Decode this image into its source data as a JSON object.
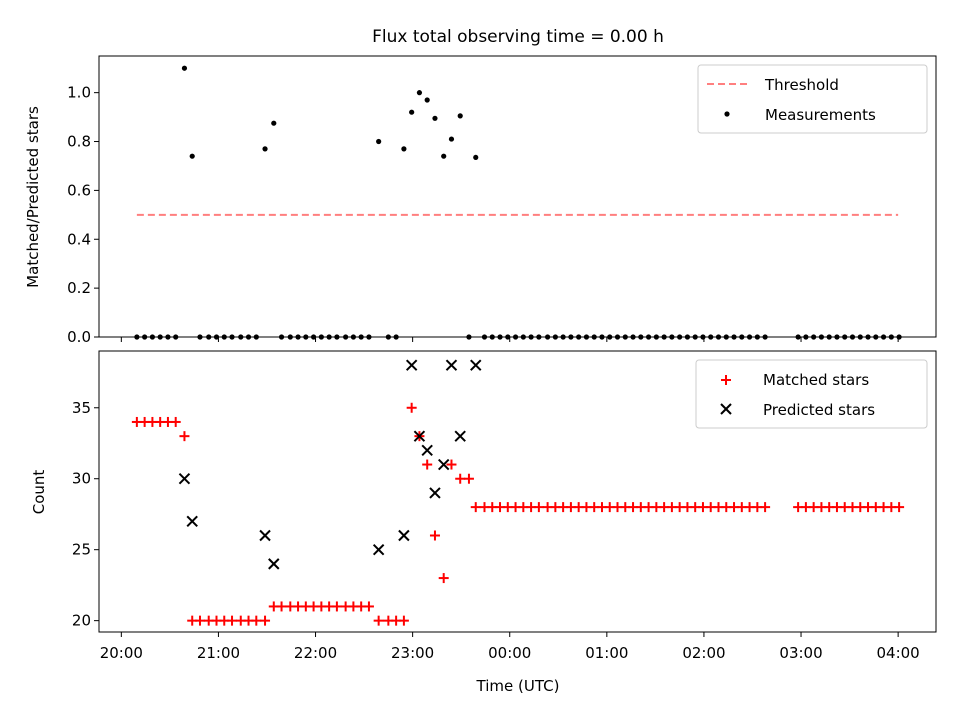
{
  "title": "Flux total observing time = 0.00 h",
  "chart_data": [
    {
      "type": "scatter",
      "ylabel": "Matched/Predicted stars",
      "ylim": [
        0,
        1.15
      ],
      "yticks": [
        "0.0",
        "0.2",
        "0.4",
        "0.6",
        "0.8",
        "1.0"
      ],
      "xlim_hours": [
        19.77,
        28.39
      ],
      "legend": {
        "position": "top-right",
        "items": [
          "Threshold",
          "Measurements"
        ]
      },
      "threshold": {
        "name": "Threshold",
        "y": 0.5,
        "x": [
          20.16,
          28.0
        ],
        "color": "#ff7f7f"
      },
      "measurements": {
        "name": "Measurements",
        "color": "#000000",
        "points": [
          [
            20.16,
            0
          ],
          [
            20.24,
            0
          ],
          [
            20.32,
            0
          ],
          [
            20.4,
            0
          ],
          [
            20.48,
            0
          ],
          [
            20.56,
            0
          ],
          [
            20.65,
            1.1
          ],
          [
            20.73,
            0.74
          ],
          [
            20.81,
            0
          ],
          [
            20.9,
            0
          ],
          [
            20.98,
            0
          ],
          [
            21.06,
            0
          ],
          [
            21.14,
            0
          ],
          [
            21.23,
            0
          ],
          [
            21.31,
            0
          ],
          [
            21.39,
            0
          ],
          [
            21.48,
            0.77
          ],
          [
            21.57,
            0.875
          ],
          [
            21.65,
            0
          ],
          [
            21.74,
            0
          ],
          [
            21.82,
            0
          ],
          [
            21.9,
            0
          ],
          [
            21.98,
            0
          ],
          [
            22.06,
            0
          ],
          [
            22.14,
            0
          ],
          [
            22.22,
            0
          ],
          [
            22.31,
            0
          ],
          [
            22.39,
            0
          ],
          [
            22.47,
            0
          ],
          [
            22.55,
            0
          ],
          [
            22.65,
            0.8
          ],
          [
            22.75,
            0
          ],
          [
            22.83,
            0
          ],
          [
            22.91,
            0.77
          ],
          [
            22.99,
            0.92
          ],
          [
            23.07,
            1.0
          ],
          [
            23.15,
            0.97
          ],
          [
            23.23,
            0.895
          ],
          [
            23.32,
            0.74
          ],
          [
            23.4,
            0.81
          ],
          [
            23.49,
            0.905
          ],
          [
            23.58,
            0
          ],
          [
            23.65,
            0.735
          ],
          [
            23.74,
            0
          ],
          [
            23.82,
            0
          ],
          [
            23.9,
            0
          ],
          [
            23.98,
            0
          ],
          [
            24.06,
            0
          ],
          [
            24.14,
            0
          ],
          [
            24.22,
            0
          ],
          [
            24.3,
            0
          ],
          [
            24.39,
            0
          ],
          [
            24.47,
            0
          ],
          [
            24.55,
            0
          ],
          [
            24.63,
            0
          ],
          [
            24.71,
            0
          ],
          [
            24.79,
            0
          ],
          [
            24.87,
            0
          ],
          [
            24.95,
            0
          ],
          [
            25.03,
            0
          ],
          [
            25.11,
            0
          ],
          [
            25.19,
            0
          ],
          [
            25.27,
            0
          ],
          [
            25.35,
            0
          ],
          [
            25.43,
            0
          ],
          [
            25.51,
            0
          ],
          [
            25.59,
            0
          ],
          [
            25.67,
            0
          ],
          [
            25.75,
            0
          ],
          [
            25.83,
            0
          ],
          [
            25.91,
            0
          ],
          [
            25.99,
            0
          ],
          [
            26.07,
            0
          ],
          [
            26.15,
            0
          ],
          [
            26.23,
            0
          ],
          [
            26.31,
            0
          ],
          [
            26.39,
            0
          ],
          [
            26.47,
            0
          ],
          [
            26.55,
            0
          ],
          [
            26.63,
            0
          ],
          [
            26.97,
            0
          ],
          [
            27.05,
            0
          ],
          [
            27.13,
            0
          ],
          [
            27.21,
            0
          ],
          [
            27.29,
            0
          ],
          [
            27.37,
            0
          ],
          [
            27.45,
            0
          ],
          [
            27.53,
            0
          ],
          [
            27.61,
            0
          ],
          [
            27.69,
            0
          ],
          [
            27.77,
            0
          ],
          [
            27.85,
            0
          ],
          [
            27.93,
            0
          ],
          [
            28.01,
            0
          ]
        ]
      }
    },
    {
      "type": "scatter",
      "ylabel": "Count",
      "xlabel": "Time (UTC)",
      "ylim": [
        19.2,
        39
      ],
      "yticks": [
        "20",
        "25",
        "30",
        "35"
      ],
      "xlim_hours": [
        19.77,
        28.39
      ],
      "xticks": [
        "20:00",
        "21:00",
        "22:00",
        "23:00",
        "00:00",
        "01:00",
        "02:00",
        "03:00",
        "04:00"
      ],
      "xtick_hours": [
        20,
        21,
        22,
        23,
        24,
        25,
        26,
        27,
        28
      ],
      "legend": {
        "position": "top-right",
        "items": [
          "Matched stars",
          "Predicted stars"
        ]
      },
      "matched": {
        "name": "Matched stars",
        "color": "#ff0000",
        "points": [
          [
            20.16,
            34
          ],
          [
            20.24,
            34
          ],
          [
            20.32,
            34
          ],
          [
            20.4,
            34
          ],
          [
            20.48,
            34
          ],
          [
            20.56,
            34
          ],
          [
            20.65,
            33
          ],
          [
            20.73,
            20
          ],
          [
            20.81,
            20
          ],
          [
            20.9,
            20
          ],
          [
            20.98,
            20
          ],
          [
            21.06,
            20
          ],
          [
            21.14,
            20
          ],
          [
            21.23,
            20
          ],
          [
            21.31,
            20
          ],
          [
            21.39,
            20
          ],
          [
            21.48,
            20
          ],
          [
            21.57,
            21
          ],
          [
            21.65,
            21
          ],
          [
            21.74,
            21
          ],
          [
            21.82,
            21
          ],
          [
            21.9,
            21
          ],
          [
            21.98,
            21
          ],
          [
            22.06,
            21
          ],
          [
            22.14,
            21
          ],
          [
            22.22,
            21
          ],
          [
            22.31,
            21
          ],
          [
            22.39,
            21
          ],
          [
            22.47,
            21
          ],
          [
            22.55,
            21
          ],
          [
            22.65,
            20
          ],
          [
            22.75,
            20
          ],
          [
            22.83,
            20
          ],
          [
            22.91,
            20
          ],
          [
            22.99,
            35
          ],
          [
            23.07,
            33
          ],
          [
            23.15,
            31
          ],
          [
            23.23,
            26
          ],
          [
            23.32,
            23
          ],
          [
            23.4,
            31
          ],
          [
            23.49,
            30
          ],
          [
            23.58,
            30
          ],
          [
            23.65,
            28
          ],
          [
            23.74,
            28
          ],
          [
            23.82,
            28
          ],
          [
            23.9,
            28
          ],
          [
            23.98,
            28
          ],
          [
            24.06,
            28
          ],
          [
            24.14,
            28
          ],
          [
            24.22,
            28
          ],
          [
            24.3,
            28
          ],
          [
            24.39,
            28
          ],
          [
            24.47,
            28
          ],
          [
            24.55,
            28
          ],
          [
            24.63,
            28
          ],
          [
            24.71,
            28
          ],
          [
            24.79,
            28
          ],
          [
            24.87,
            28
          ],
          [
            24.95,
            28
          ],
          [
            25.03,
            28
          ],
          [
            25.11,
            28
          ],
          [
            25.19,
            28
          ],
          [
            25.27,
            28
          ],
          [
            25.35,
            28
          ],
          [
            25.43,
            28
          ],
          [
            25.51,
            28
          ],
          [
            25.59,
            28
          ],
          [
            25.67,
            28
          ],
          [
            25.75,
            28
          ],
          [
            25.83,
            28
          ],
          [
            25.91,
            28
          ],
          [
            25.99,
            28
          ],
          [
            26.07,
            28
          ],
          [
            26.15,
            28
          ],
          [
            26.23,
            28
          ],
          [
            26.31,
            28
          ],
          [
            26.39,
            28
          ],
          [
            26.47,
            28
          ],
          [
            26.55,
            28
          ],
          [
            26.63,
            28
          ],
          [
            26.97,
            28
          ],
          [
            27.05,
            28
          ],
          [
            27.13,
            28
          ],
          [
            27.21,
            28
          ],
          [
            27.29,
            28
          ],
          [
            27.37,
            28
          ],
          [
            27.45,
            28
          ],
          [
            27.53,
            28
          ],
          [
            27.61,
            28
          ],
          [
            27.69,
            28
          ],
          [
            27.77,
            28
          ],
          [
            27.85,
            28
          ],
          [
            27.93,
            28
          ],
          [
            28.01,
            28
          ]
        ]
      },
      "predicted": {
        "name": "Predicted stars",
        "color": "#000000",
        "points": [
          [
            20.65,
            30
          ],
          [
            20.73,
            27
          ],
          [
            21.48,
            26
          ],
          [
            21.57,
            24
          ],
          [
            22.65,
            25
          ],
          [
            22.91,
            26
          ],
          [
            22.99,
            38
          ],
          [
            23.07,
            33
          ],
          [
            23.15,
            32
          ],
          [
            23.23,
            29
          ],
          [
            23.32,
            31
          ],
          [
            23.4,
            38
          ],
          [
            23.49,
            33
          ],
          [
            23.65,
            38
          ]
        ]
      }
    }
  ]
}
